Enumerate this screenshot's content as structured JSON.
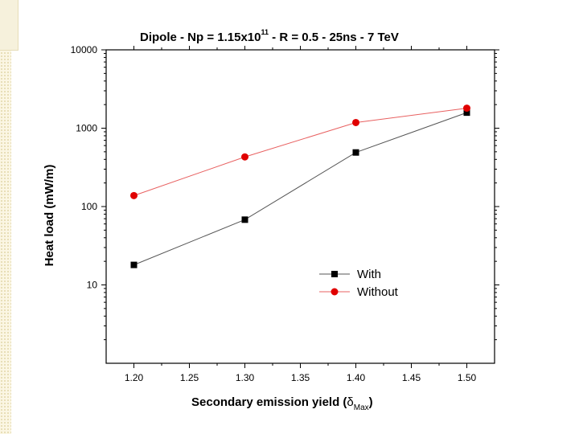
{
  "chart_data": {
    "type": "line",
    "title": "Dipole - Np = 1.15x10",
    "title_sup": "11",
    "title_suffix": " - R = 0.5 - 25ns - 7 TeV",
    "xlabel_main": "Secondary emission yield (",
    "xlabel_greek": "δ",
    "xlabel_sub": "Max",
    "xlabel_close": ")",
    "ylabel": "Heat load (mW/m)",
    "x": [
      1.2,
      1.3,
      1.4,
      1.5
    ],
    "xlim": [
      1.175,
      1.525
    ],
    "ylim": [
      1,
      10000
    ],
    "yscale": "log",
    "x_ticks": [
      "1.20",
      "1.25",
      "1.30",
      "1.35",
      "1.40",
      "1.45",
      "1.50"
    ],
    "y_ticks": [
      "10",
      "100",
      "1000",
      "10000"
    ],
    "legend_position": "center-right",
    "series": [
      {
        "name": "With",
        "marker": "square",
        "color": "#000000",
        "line_color": "#555555",
        "values": [
          18,
          68,
          490,
          1580
        ]
      },
      {
        "name": "Without",
        "marker": "circle",
        "color": "#e00000",
        "line_color": "#e86060",
        "values": [
          138,
          430,
          1180,
          1800
        ]
      }
    ]
  }
}
